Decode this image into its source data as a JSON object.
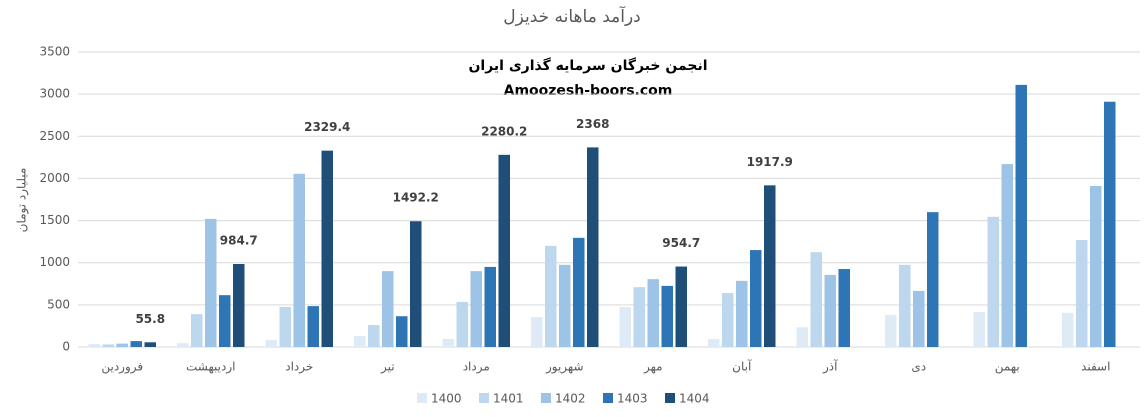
{
  "chart_data": {
    "type": "bar",
    "title": "درآمد ماهانه خدیزل",
    "y_label": "میلیارد تومان",
    "annotations": [
      "انجمن خبرگان سرمایه گذاری ایران",
      "Amoozesh-boors.com"
    ],
    "categories": [
      "فروردین",
      "اردیبهشت",
      "خرداد",
      "تیر",
      "مرداد",
      "شهریور",
      "مهر",
      "آبان",
      "آذر",
      "دی",
      "بهمن",
      "اسفند"
    ],
    "series": [
      {
        "name": "1400",
        "color": "#deebf7",
        "values": [
          35,
          45,
          85,
          130,
          95,
          355,
          475,
          95,
          235,
          380,
          415,
          405
        ]
      },
      {
        "name": "1401",
        "color": "#bdd7ee",
        "values": [
          30,
          390,
          475,
          260,
          535,
          1200,
          710,
          640,
          1125,
          975,
          1545,
          1270
        ]
      },
      {
        "name": "1402",
        "color": "#9dc3e6",
        "values": [
          40,
          1520,
          2055,
          900,
          900,
          975,
          805,
          785,
          855,
          665,
          2170,
          1910
        ]
      },
      {
        "name": "1403",
        "color": "#2e75b6",
        "values": [
          70,
          615,
          485,
          365,
          950,
          1295,
          725,
          1150,
          925,
          1600,
          3110,
          2910
        ]
      },
      {
        "name": "1404",
        "color": "#1f4e79",
        "labels": true,
        "values": [
          55.8,
          984.7,
          2329.4,
          1492.2,
          2280.2,
          2368,
          954.7,
          1917.9,
          null,
          null,
          null,
          null
        ]
      }
    ],
    "ylim": [
      0,
      3500
    ],
    "yticks": [
      0,
      500,
      1000,
      1500,
      2000,
      2500,
      3000,
      3500
    ],
    "grid": true
  }
}
